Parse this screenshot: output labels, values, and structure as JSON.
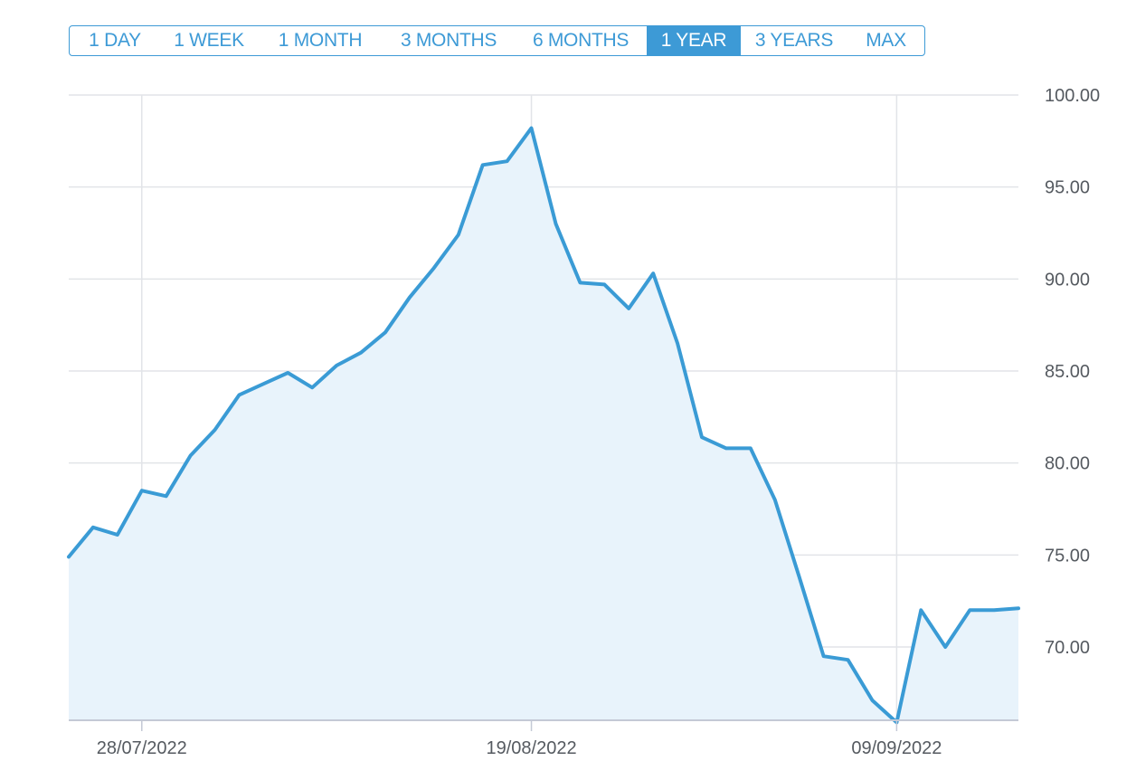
{
  "range_selector": {
    "buttons": [
      {
        "label": "1 DAY",
        "active": false
      },
      {
        "label": "1 WEEK",
        "active": false
      },
      {
        "label": "1 MONTH",
        "active": false
      },
      {
        "label": "3 MONTHS",
        "active": false
      },
      {
        "label": "6 MONTHS",
        "active": false
      },
      {
        "label": "1 YEAR",
        "active": true
      },
      {
        "label": "3 YEARS",
        "active": false
      },
      {
        "label": "MAX",
        "active": false
      }
    ]
  },
  "colors": {
    "accent": "#3d9ad6",
    "line": "#3a9bd5",
    "area_fill": "#e8f3fb",
    "grid": "#e2e4e8",
    "axis": "#c4c9d6"
  },
  "chart_data": {
    "type": "area",
    "title": "",
    "xlabel": "",
    "ylabel": "",
    "ylim": [
      66,
      100
    ],
    "y_ticks": [
      "70.00",
      "75.00",
      "80.00",
      "85.00",
      "90.00",
      "95.00",
      "100.00"
    ],
    "y_tick_values": [
      70,
      75,
      80,
      85,
      90,
      95,
      100
    ],
    "x_ticks": [
      {
        "label": "28/07/2022",
        "date": "2022-07-28"
      },
      {
        "label": "19/08/2022",
        "date": "2022-08-19"
      },
      {
        "label": "09/09/2022",
        "date": "2022-09-09"
      }
    ],
    "y_axis_position": "right",
    "grid": true,
    "legend": "none",
    "series": [
      {
        "x": [
          "2022-07-22",
          "2022-07-23",
          "2022-07-25",
          "2022-07-28",
          "2022-07-29",
          "2022-08-01",
          "2022-08-02",
          "2022-08-03",
          "2022-08-04",
          "2022-08-05",
          "2022-08-08",
          "2022-08-09",
          "2022-08-10",
          "2022-08-11",
          "2022-08-12",
          "2022-08-15",
          "2022-08-16",
          "2022-08-17",
          "2022-08-18",
          "2022-08-19",
          "2022-08-22",
          "2022-08-23",
          "2022-08-24",
          "2022-08-25",
          "2022-08-26",
          "2022-08-29",
          "2022-08-30",
          "2022-08-31",
          "2022-09-01",
          "2022-09-02",
          "2022-09-05",
          "2022-09-06",
          "2022-09-07",
          "2022-09-08",
          "2022-09-09",
          "2022-09-12",
          "2022-09-13",
          "2022-09-14",
          "2022-09-15",
          "2022-09-16"
        ],
        "values": [
          74.9,
          76.5,
          76.1,
          78.5,
          78.2,
          80.4,
          81.8,
          83.7,
          84.3,
          84.9,
          84.1,
          85.3,
          86.0,
          87.1,
          89.0,
          90.6,
          92.4,
          96.2,
          96.4,
          98.2,
          93.0,
          89.8,
          89.7,
          88.4,
          90.3,
          86.5,
          81.4,
          80.8,
          80.8,
          78.0,
          73.8,
          69.5,
          69.3,
          67.1,
          65.9,
          72.0,
          70.0,
          72.0,
          72.0,
          72.1
        ]
      }
    ]
  }
}
